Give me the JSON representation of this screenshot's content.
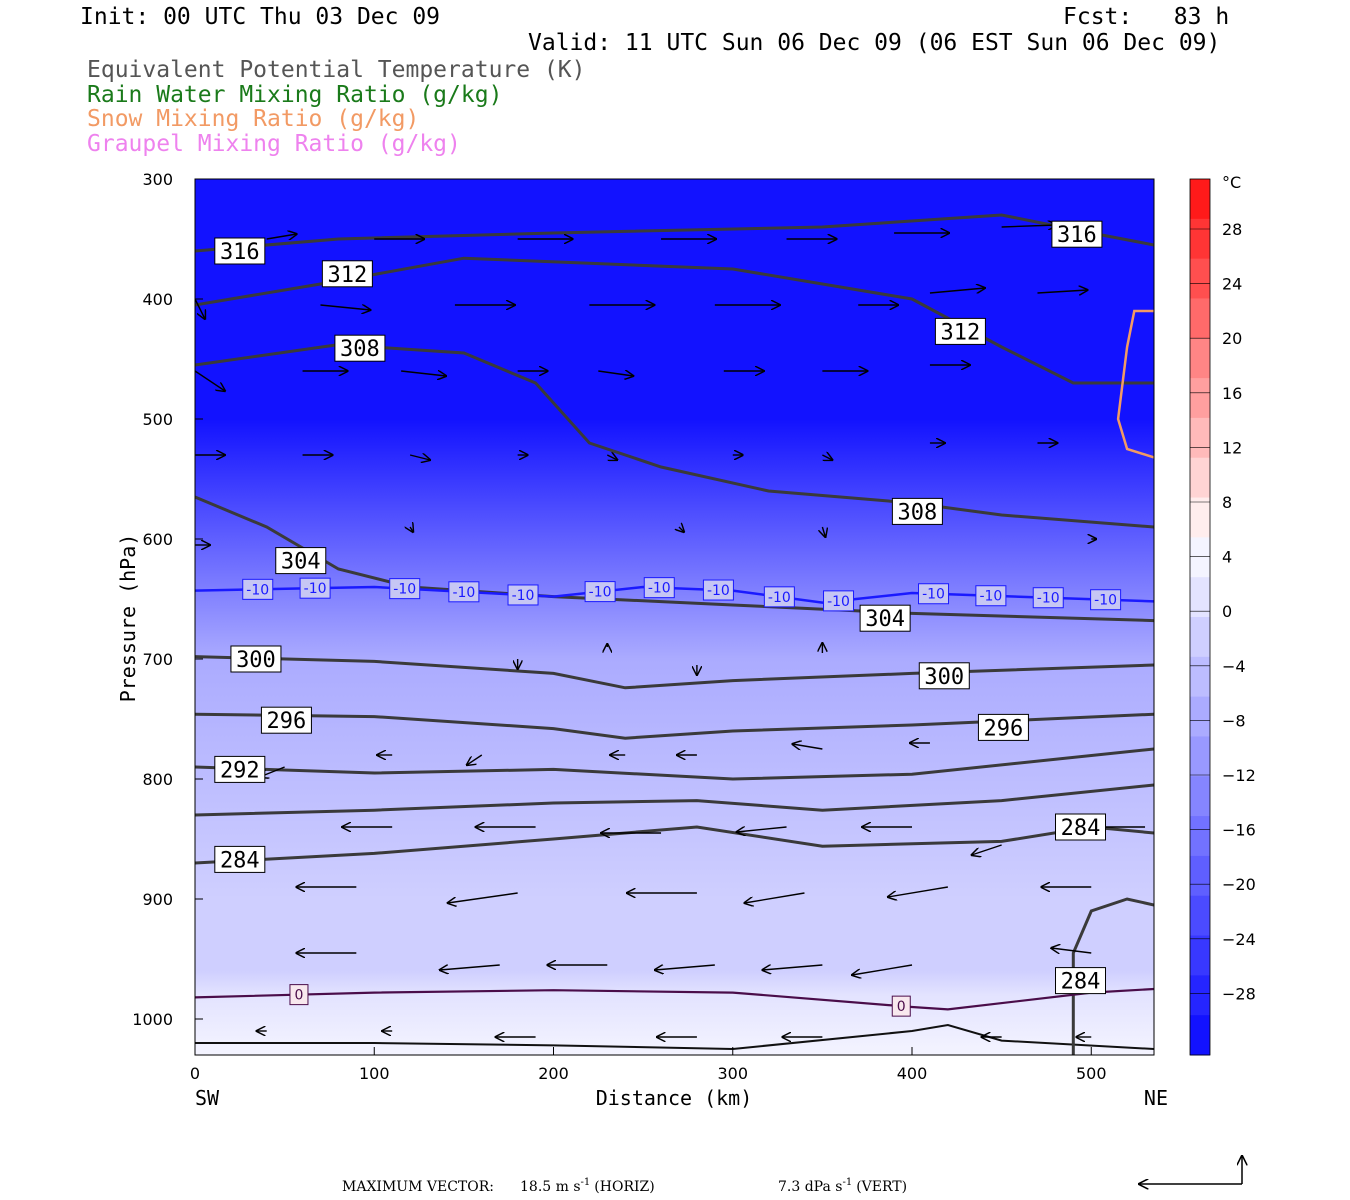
{
  "header": {
    "init": "Init: 00 UTC Thu 03 Dec 09",
    "fcst": "Fcst:   83 h",
    "valid": "Valid: 11 UTC Sun 06 Dec 09 (06 EST Sun 06 Dec 09)"
  },
  "legend": [
    {
      "text": "Equivalent Potential Temperature (K)",
      "color": "#555555"
    },
    {
      "text": "Rain Water Mixing Ratio (g/kg)",
      "color": "#1a7a1a"
    },
    {
      "text": "Snow Mixing Ratio (g/kg)",
      "color": "#f29a64"
    },
    {
      "text": "Graupel Mixing Ratio (g/kg)",
      "color": "#ee82ee"
    }
  ],
  "chart_data": {
    "type": "contour-cross-section",
    "xlabel": "Distance (km)",
    "ylabel": "Pressure (hPa)",
    "xlim": [
      0,
      535
    ],
    "ylim": [
      1030,
      300
    ],
    "x_ticks": [
      "0",
      "100",
      "200",
      "300",
      "400",
      "500"
    ],
    "y_ticks": [
      "300",
      "400",
      "500",
      "600",
      "700",
      "800",
      "900",
      "1000"
    ],
    "x_left_label": "SW",
    "x_right_label": "NE",
    "temperature_fill_levels_C": [
      {
        "p": 300,
        "t": -56
      },
      {
        "p": 400,
        "t": -42
      },
      {
        "p": 500,
        "t": -30
      },
      {
        "p": 600,
        "t": -19
      },
      {
        "p": 700,
        "t": -8
      },
      {
        "p": 800,
        "t": -3
      },
      {
        "p": 900,
        "t": -2
      },
      {
        "p": 960,
        "t": -0.5
      },
      {
        "p": 980,
        "t": 0.5
      },
      {
        "p": 1030,
        "t": 3
      }
    ],
    "theta_e_contours": [
      {
        "label": "316",
        "points": [
          [
            0,
            360
          ],
          [
            80,
            350
          ],
          [
            200,
            345
          ],
          [
            350,
            340
          ],
          [
            450,
            330
          ],
          [
            500,
            345
          ],
          [
            535,
            355
          ]
        ]
      },
      {
        "label": "312",
        "points": [
          [
            0,
            405
          ],
          [
            80,
            385
          ],
          [
            150,
            366
          ],
          [
            300,
            375
          ],
          [
            400,
            400
          ],
          [
            450,
            440
          ],
          [
            490,
            470
          ],
          [
            535,
            470
          ]
        ]
      },
      {
        "label": "308",
        "points": [
          [
            0,
            455
          ],
          [
            80,
            438
          ],
          [
            150,
            445
          ],
          [
            190,
            470
          ],
          [
            220,
            520
          ],
          [
            260,
            540
          ],
          [
            320,
            560
          ],
          [
            400,
            570
          ],
          [
            450,
            580
          ],
          [
            535,
            590
          ]
        ]
      },
      {
        "label": "304",
        "points": [
          [
            0,
            565
          ],
          [
            40,
            590
          ],
          [
            80,
            625
          ],
          [
            120,
            640
          ],
          [
            200,
            648
          ],
          [
            300,
            655
          ],
          [
            400,
            662
          ],
          [
            535,
            668
          ]
        ]
      },
      {
        "label": "300",
        "points": [
          [
            0,
            698
          ],
          [
            100,
            702
          ],
          [
            200,
            712
          ],
          [
            240,
            724
          ],
          [
            300,
            718
          ],
          [
            400,
            712
          ],
          [
            535,
            705
          ]
        ]
      },
      {
        "label": "296",
        "points": [
          [
            0,
            746
          ],
          [
            100,
            748
          ],
          [
            200,
            758
          ],
          [
            240,
            766
          ],
          [
            300,
            760
          ],
          [
            400,
            755
          ],
          [
            535,
            746
          ]
        ]
      },
      {
        "label": "292",
        "points": [
          [
            0,
            790
          ],
          [
            100,
            795
          ],
          [
            200,
            792
          ],
          [
            300,
            800
          ],
          [
            400,
            796
          ],
          [
            535,
            775
          ]
        ]
      },
      {
        "label": "",
        "points": [
          [
            0,
            830
          ],
          [
            100,
            826
          ],
          [
            200,
            820
          ],
          [
            280,
            818
          ],
          [
            350,
            826
          ],
          [
            450,
            818
          ],
          [
            535,
            805
          ]
        ]
      },
      {
        "label": "284",
        "points": [
          [
            0,
            870
          ],
          [
            100,
            862
          ],
          [
            200,
            850
          ],
          [
            280,
            840
          ],
          [
            350,
            856
          ],
          [
            450,
            852
          ],
          [
            500,
            840
          ],
          [
            535,
            845
          ]
        ]
      },
      {
        "label": "284",
        "points": [
          [
            490,
            1035
          ],
          [
            490,
            945
          ],
          [
            500,
            910
          ],
          [
            520,
            900
          ],
          [
            535,
            905
          ]
        ]
      }
    ],
    "theta_e_labels": [
      {
        "label": "316",
        "x": 25,
        "p": 360
      },
      {
        "label": "316",
        "x": 492,
        "p": 346
      },
      {
        "label": "312",
        "x": 85,
        "p": 379
      },
      {
        "label": "312",
        "x": 427,
        "p": 427
      },
      {
        "label": "308",
        "x": 92,
        "p": 441
      },
      {
        "label": "308",
        "x": 403,
        "p": 577
      },
      {
        "label": "304",
        "x": 59,
        "p": 618
      },
      {
        "label": "304",
        "x": 385,
        "p": 666
      },
      {
        "label": "300",
        "x": 34,
        "p": 700
      },
      {
        "label": "300",
        "x": 418,
        "p": 714
      },
      {
        "label": "296",
        "x": 51,
        "p": 751
      },
      {
        "label": "296",
        "x": 451,
        "p": 757
      },
      {
        "label": "292",
        "x": 25,
        "p": 792
      },
      {
        "label": "284",
        "x": 25,
        "p": 867
      },
      {
        "label": "284",
        "x": 494,
        "p": 840
      },
      {
        "label": "284",
        "x": 494,
        "p": 968
      }
    ],
    "isotherm_contours": [
      {
        "label": "-10",
        "points": [
          [
            0,
            643
          ],
          [
            100,
            640
          ],
          [
            200,
            648
          ],
          [
            250,
            640
          ],
          [
            300,
            643
          ],
          [
            350,
            653
          ],
          [
            400,
            645
          ],
          [
            535,
            652
          ]
        ],
        "label_x": [
          35,
          67,
          117,
          150,
          183,
          226,
          259,
          292,
          326,
          359,
          412,
          444,
          476,
          508
        ]
      },
      {
        "label": "0",
        "points": [
          [
            0,
            982
          ],
          [
            100,
            978
          ],
          [
            200,
            976
          ],
          [
            300,
            978
          ],
          [
            400,
            990
          ],
          [
            420,
            992
          ],
          [
            500,
            978
          ],
          [
            535,
            975
          ]
        ],
        "label_x": [
          58,
          394
        ]
      }
    ],
    "snow_mixing_contour": {
      "points": [
        [
          535,
          410
        ],
        [
          524,
          410
        ],
        [
          520,
          440
        ],
        [
          515,
          500
        ],
        [
          520,
          525
        ],
        [
          535,
          532
        ]
      ]
    },
    "wind_vectors": [
      {
        "x": 40,
        "p": 350,
        "dx": 30,
        "dy": -5
      },
      {
        "x": 100,
        "p": 350,
        "dx": 50,
        "dy": 0
      },
      {
        "x": 180,
        "p": 350,
        "dx": 55,
        "dy": 0
      },
      {
        "x": 260,
        "p": 350,
        "dx": 55,
        "dy": 0
      },
      {
        "x": 330,
        "p": 350,
        "dx": 50,
        "dy": 0
      },
      {
        "x": 390,
        "p": 345,
        "dx": 55,
        "dy": 0
      },
      {
        "x": 450,
        "p": 340,
        "dx": 55,
        "dy": -2
      },
      {
        "x": 0,
        "p": 400,
        "dx": 10,
        "dy": 20
      },
      {
        "x": 70,
        "p": 405,
        "dx": 50,
        "dy": 5
      },
      {
        "x": 145,
        "p": 405,
        "dx": 60,
        "dy": 0
      },
      {
        "x": 220,
        "p": 405,
        "dx": 65,
        "dy": 0
      },
      {
        "x": 290,
        "p": 405,
        "dx": 65,
        "dy": 0
      },
      {
        "x": 370,
        "p": 405,
        "dx": 40,
        "dy": 0
      },
      {
        "x": 410,
        "p": 395,
        "dx": 55,
        "dy": -5
      },
      {
        "x": 470,
        "p": 395,
        "dx": 50,
        "dy": -3
      },
      {
        "x": 0,
        "p": 460,
        "dx": 30,
        "dy": 20
      },
      {
        "x": 60,
        "p": 460,
        "dx": 45,
        "dy": 0
      },
      {
        "x": 115,
        "p": 460,
        "dx": 45,
        "dy": 5
      },
      {
        "x": 180,
        "p": 460,
        "dx": 30,
        "dy": 0
      },
      {
        "x": 225,
        "p": 460,
        "dx": 35,
        "dy": 5
      },
      {
        "x": 295,
        "p": 460,
        "dx": 40,
        "dy": 0
      },
      {
        "x": 350,
        "p": 460,
        "dx": 45,
        "dy": 0
      },
      {
        "x": 410,
        "p": 455,
        "dx": 40,
        "dy": 0
      },
      {
        "x": 0,
        "p": 530,
        "dx": 30,
        "dy": 0
      },
      {
        "x": 60,
        "p": 530,
        "dx": 30,
        "dy": 0
      },
      {
        "x": 120,
        "p": 530,
        "dx": 20,
        "dy": 5
      },
      {
        "x": 180,
        "p": 530,
        "dx": 10,
        "dy": 0
      },
      {
        "x": 230,
        "p": 530,
        "dx": 10,
        "dy": 5
      },
      {
        "x": 300,
        "p": 530,
        "dx": 10,
        "dy": 0
      },
      {
        "x": 350,
        "p": 530,
        "dx": 10,
        "dy": 5
      },
      {
        "x": 410,
        "p": 520,
        "dx": 15,
        "dy": 0
      },
      {
        "x": 470,
        "p": 520,
        "dx": 20,
        "dy": 0
      },
      {
        "x": 0,
        "p": 605,
        "dx": 15,
        "dy": 0
      },
      {
        "x": 500,
        "p": 600,
        "dx": 5,
        "dy": 0
      },
      {
        "x": 120,
        "p": 590,
        "dx": 3,
        "dy": 5
      },
      {
        "x": 270,
        "p": 590,
        "dx": 5,
        "dy": 5
      },
      {
        "x": 350,
        "p": 590,
        "dx": 3,
        "dy": 10
      },
      {
        "x": 350,
        "p": 695,
        "dx": 0,
        "dy": -10
      },
      {
        "x": 280,
        "p": 705,
        "dx": 0,
        "dy": 10
      },
      {
        "x": 180,
        "p": 700,
        "dx": 0,
        "dy": 10
      },
      {
        "x": 230,
        "p": 690,
        "dx": 0,
        "dy": -3
      },
      {
        "x": 0,
        "p": 790,
        "dx": -20,
        "dy": 10
      },
      {
        "x": 50,
        "p": 790,
        "dx": -25,
        "dy": 10
      },
      {
        "x": 110,
        "p": 780,
        "dx": -15,
        "dy": 0
      },
      {
        "x": 160,
        "p": 780,
        "dx": -15,
        "dy": 10
      },
      {
        "x": 240,
        "p": 780,
        "dx": -15,
        "dy": 0
      },
      {
        "x": 280,
        "p": 780,
        "dx": -20,
        "dy": 0
      },
      {
        "x": 350,
        "p": 775,
        "dx": -30,
        "dy": -5
      },
      {
        "x": 410,
        "p": 770,
        "dx": -20,
        "dy": 0
      },
      {
        "x": 0,
        "p": 855,
        "dx": -40,
        "dy": 10
      },
      {
        "x": 110,
        "p": 840,
        "dx": -50,
        "dy": 0
      },
      {
        "x": 190,
        "p": 840,
        "dx": -60,
        "dy": 0
      },
      {
        "x": 260,
        "p": 845,
        "dx": -60,
        "dy": 0
      },
      {
        "x": 330,
        "p": 840,
        "dx": -50,
        "dy": 5
      },
      {
        "x": 400,
        "p": 840,
        "dx": -50,
        "dy": 0
      },
      {
        "x": 450,
        "p": 855,
        "dx": -30,
        "dy": 10
      },
      {
        "x": 530,
        "p": 840,
        "dx": -50,
        "dy": 0
      },
      {
        "x": 0,
        "p": 905,
        "dx": -60,
        "dy": 10
      },
      {
        "x": 90,
        "p": 890,
        "dx": -60,
        "dy": 0
      },
      {
        "x": 180,
        "p": 895,
        "dx": -70,
        "dy": 10
      },
      {
        "x": 280,
        "p": 895,
        "dx": -70,
        "dy": 0
      },
      {
        "x": 340,
        "p": 895,
        "dx": -60,
        "dy": 10
      },
      {
        "x": 420,
        "p": 890,
        "dx": -60,
        "dy": 10
      },
      {
        "x": 500,
        "p": 890,
        "dx": -50,
        "dy": 0
      },
      {
        "x": 0,
        "p": 955,
        "dx": -50,
        "dy": 5
      },
      {
        "x": 90,
        "p": 945,
        "dx": -60,
        "dy": 0
      },
      {
        "x": 170,
        "p": 955,
        "dx": -60,
        "dy": 5
      },
      {
        "x": 230,
        "p": 955,
        "dx": -60,
        "dy": 0
      },
      {
        "x": 290,
        "p": 955,
        "dx": -60,
        "dy": 5
      },
      {
        "x": 350,
        "p": 955,
        "dx": -60,
        "dy": 5
      },
      {
        "x": 400,
        "p": 955,
        "dx": -60,
        "dy": 10
      },
      {
        "x": 500,
        "p": 945,
        "dx": -40,
        "dy": -5
      },
      {
        "x": 40,
        "p": 1010,
        "dx": -10,
        "dy": 0
      },
      {
        "x": 110,
        "p": 1010,
        "dx": -10,
        "dy": 0
      },
      {
        "x": 190,
        "p": 1015,
        "dx": -40,
        "dy": 0
      },
      {
        "x": 280,
        "p": 1015,
        "dx": -40,
        "dy": 0
      },
      {
        "x": 350,
        "p": 1015,
        "dx": -40,
        "dy": 0
      },
      {
        "x": 450,
        "p": 1015,
        "dx": -20,
        "dy": 0
      },
      {
        "x": 500,
        "p": 1015,
        "dx": -15,
        "dy": 0
      }
    ],
    "surface_line": {
      "points": [
        [
          0,
          1020
        ],
        [
          100,
          1020
        ],
        [
          200,
          1022
        ],
        [
          300,
          1025
        ],
        [
          400,
          1010
        ],
        [
          420,
          1005
        ],
        [
          450,
          1018
        ],
        [
          535,
          1025
        ]
      ]
    },
    "colorbar": {
      "unit": "°C",
      "labels": [
        "28",
        "24",
        "20",
        "16",
        "12",
        "8",
        "4",
        "0",
        "−4",
        "−8",
        "−12",
        "−16",
        "−20",
        "−24",
        "−28"
      ],
      "colors": [
        "#ff1a1a",
        "#ff3535",
        "#ff4f4f",
        "#ff6a6a",
        "#ff8585",
        "#ff9f9f",
        "#ffbaba",
        "#ffd4d4",
        "#ffeded",
        "#f4f4ff",
        "#e3e3ff",
        "#cfcfff",
        "#bdbdff",
        "#ababff",
        "#9999ff",
        "#8585ff",
        "#7272ff",
        "#5f5fff",
        "#4b4bff",
        "#3838ff",
        "#2525ff",
        "#1212ff"
      ]
    }
  },
  "footer": {
    "max_vector_label": "MAXIMUM VECTOR:",
    "horiz": "18.5 m s",
    "horiz_sup": "-1",
    "horiz_tail": "(HORIZ)",
    "vert": "7.3 dPa s",
    "vert_sup": "-1",
    "vert_tail": "(VERT)"
  }
}
